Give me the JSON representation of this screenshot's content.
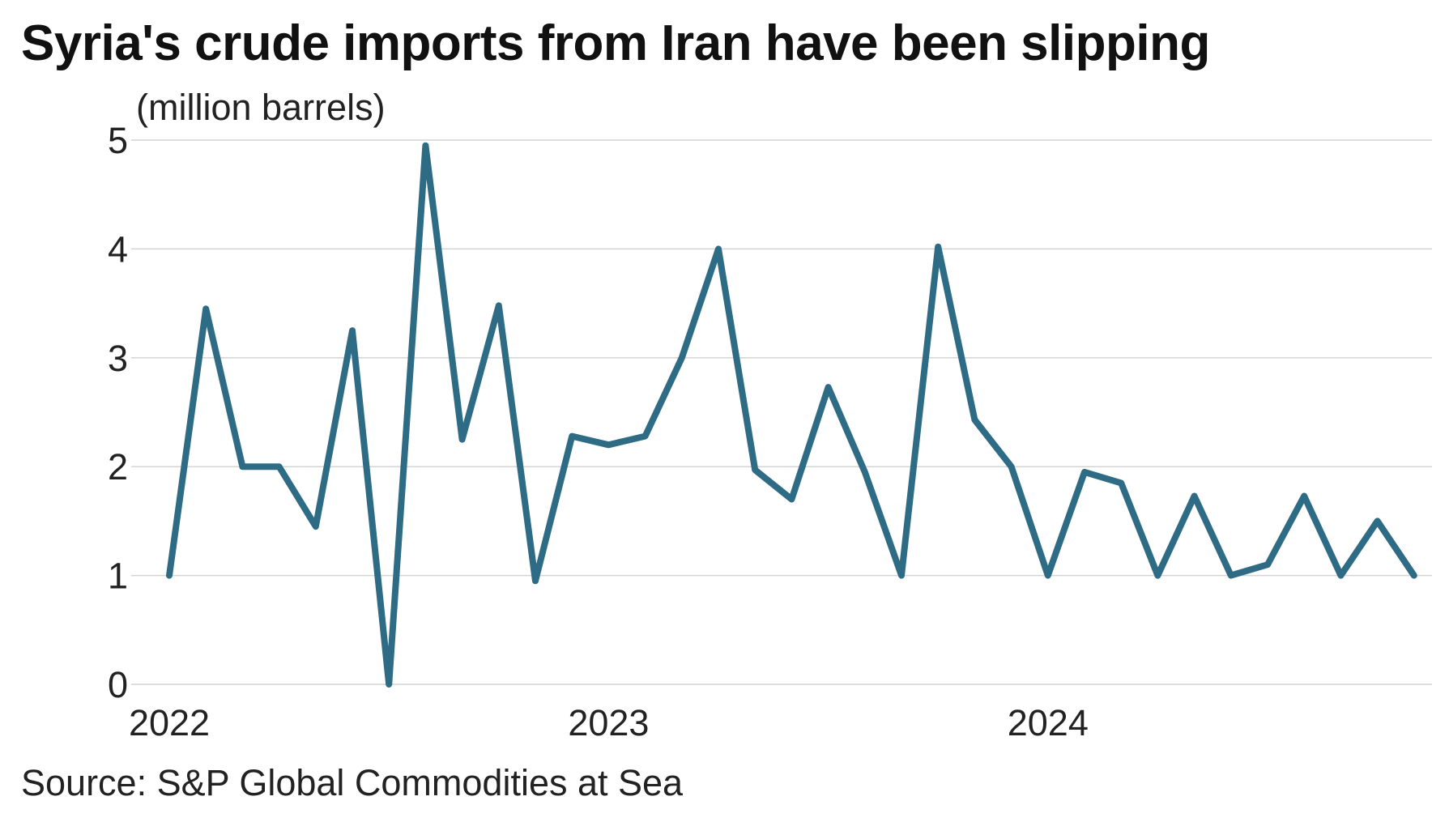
{
  "chart_data": {
    "type": "line",
    "title": "Syria's crude imports from Iran have been slipping",
    "ylabel": "(million barrels)",
    "xlabel": "",
    "ylim": [
      0,
      5
    ],
    "yticks": [
      0,
      1,
      2,
      3,
      4,
      5
    ],
    "xticks": [
      "2022",
      "2023",
      "2024"
    ],
    "grid": true,
    "legend": "none",
    "source": "Source: S&P Global Commodities at Sea",
    "x": [
      "2022-01",
      "2022-02",
      "2022-03",
      "2022-04",
      "2022-05",
      "2022-06",
      "2022-07",
      "2022-08",
      "2022-09",
      "2022-10",
      "2022-11",
      "2022-12",
      "2023-01",
      "2023-02",
      "2023-03",
      "2023-04",
      "2023-05",
      "2023-06",
      "2023-07",
      "2023-08",
      "2023-09",
      "2023-10",
      "2023-11",
      "2023-12",
      "2024-01",
      "2024-02",
      "2024-03",
      "2024-04",
      "2024-05",
      "2024-06",
      "2024-07",
      "2024-08",
      "2024-09",
      "2024-10",
      "2024-11"
    ],
    "series": [
      {
        "values": [
          1.0,
          3.45,
          2.0,
          2.0,
          1.45,
          3.25,
          0.0,
          4.95,
          2.25,
          3.48,
          0.95,
          2.28,
          2.2,
          2.28,
          3.0,
          4.0,
          1.97,
          1.7,
          2.73,
          1.95,
          1.0,
          4.02,
          2.43,
          2.0,
          1.0,
          1.95,
          1.85,
          1.0,
          1.73,
          1.0,
          1.1,
          1.73,
          1.0,
          1.5,
          1.0
        ]
      }
    ],
    "colors": {
      "line": "#2e6b85",
      "grid": "#d4d4d4"
    }
  }
}
